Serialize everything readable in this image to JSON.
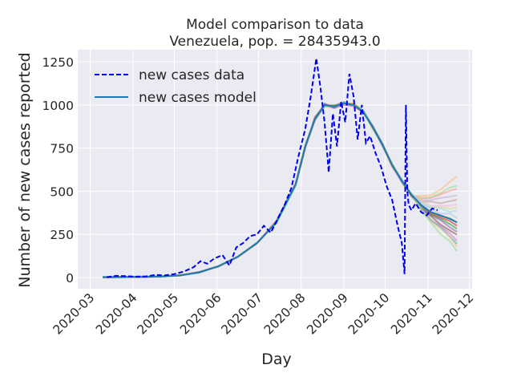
{
  "chart_data": {
    "type": "line",
    "title": "Model comparison to data",
    "subtitle": "Venezuela, pop. = 28435943.0",
    "xlabel": "Day",
    "ylabel": "Number of new cases reported",
    "x_ticks": [
      "2020-03",
      "2020-04",
      "2020-05",
      "2020-06",
      "2020-07",
      "2020-08",
      "2020-09",
      "2020-10",
      "2020-11",
      "2020-12"
    ],
    "y_ticks": [
      0,
      250,
      500,
      750,
      1000,
      1250
    ],
    "xlim": [
      "2020-02-21",
      "2020-12-03"
    ],
    "ylim": [
      -65,
      1320
    ],
    "grid": true,
    "legend_position": "top-left",
    "legend": [
      {
        "label": "new cases data",
        "style": "dashed",
        "color": "#0000ee"
      },
      {
        "label": "new cases model",
        "style": "solid",
        "color": "#1f77b4"
      }
    ],
    "data_color": "#0000ee",
    "model_color": "#1f77b4",
    "ensemble_colors": [
      "#ffbb78",
      "#98df8a",
      "#ff9896",
      "#c5b0d5",
      "#c49c94",
      "#f7b6d2",
      "#dbdb8d",
      "#9edae5",
      "#aec7e8",
      "#bcbd22",
      "#d62728",
      "#2ca02c",
      "#9467bd",
      "#8c564b",
      "#e377c2",
      "#17becf"
    ],
    "series": [
      {
        "name": "new cases data",
        "x": [
          "2020-03-13",
          "2020-03-20",
          "2020-03-27",
          "2020-04-03",
          "2020-04-10",
          "2020-04-17",
          "2020-04-24",
          "2020-05-01",
          "2020-05-08",
          "2020-05-15",
          "2020-05-20",
          "2020-05-25",
          "2020-05-30",
          "2020-06-05",
          "2020-06-10",
          "2020-06-15",
          "2020-06-20",
          "2020-06-25",
          "2020-06-30",
          "2020-07-05",
          "2020-07-10",
          "2020-07-15",
          "2020-07-20",
          "2020-07-25",
          "2020-07-30",
          "2020-08-04",
          "2020-08-08",
          "2020-08-12",
          "2020-08-15",
          "2020-08-18",
          "2020-08-21",
          "2020-08-24",
          "2020-08-27",
          "2020-08-30",
          "2020-09-02",
          "2020-09-05",
          "2020-09-08",
          "2020-09-11",
          "2020-09-14",
          "2020-09-17",
          "2020-09-20",
          "2020-09-24",
          "2020-09-28",
          "2020-10-02",
          "2020-10-06",
          "2020-10-10",
          "2020-10-13",
          "2020-10-15",
          "2020-10-16",
          "2020-10-17",
          "2020-10-18",
          "2020-10-20",
          "2020-10-23",
          "2020-10-27",
          "2020-10-31",
          "2020-11-04",
          "2020-11-08"
        ],
        "y": [
          2,
          10,
          8,
          5,
          6,
          15,
          12,
          20,
          35,
          60,
          95,
          80,
          110,
          130,
          70,
          175,
          200,
          240,
          250,
          300,
          260,
          340,
          420,
          520,
          700,
          860,
          1050,
          1270,
          1100,
          900,
          610,
          950,
          760,
          1020,
          900,
          1180,
          1050,
          800,
          1000,
          780,
          820,
          720,
          640,
          530,
          450,
          300,
          200,
          20,
          1000,
          500,
          420,
          390,
          430,
          380,
          360,
          400,
          390
        ]
      },
      {
        "name": "new cases model",
        "x": [
          "2020-03-10",
          "2020-03-24",
          "2020-04-07",
          "2020-04-21",
          "2020-05-05",
          "2020-05-19",
          "2020-06-02",
          "2020-06-16",
          "2020-06-30",
          "2020-07-14",
          "2020-07-28",
          "2020-08-04",
          "2020-08-11",
          "2020-08-18",
          "2020-08-25",
          "2020-09-01",
          "2020-09-08",
          "2020-09-15",
          "2020-09-22",
          "2020-09-29",
          "2020-10-06",
          "2020-10-13",
          "2020-10-20",
          "2020-10-27",
          "2020-11-03",
          "2020-11-10",
          "2020-11-17",
          "2020-11-22"
        ],
        "y": [
          2,
          3,
          4,
          6,
          12,
          30,
          65,
          120,
          200,
          320,
          540,
          760,
          920,
          1000,
          990,
          1010,
          1000,
          960,
          870,
          770,
          650,
          560,
          480,
          420,
          380,
          360,
          340,
          320
        ]
      }
    ]
  }
}
